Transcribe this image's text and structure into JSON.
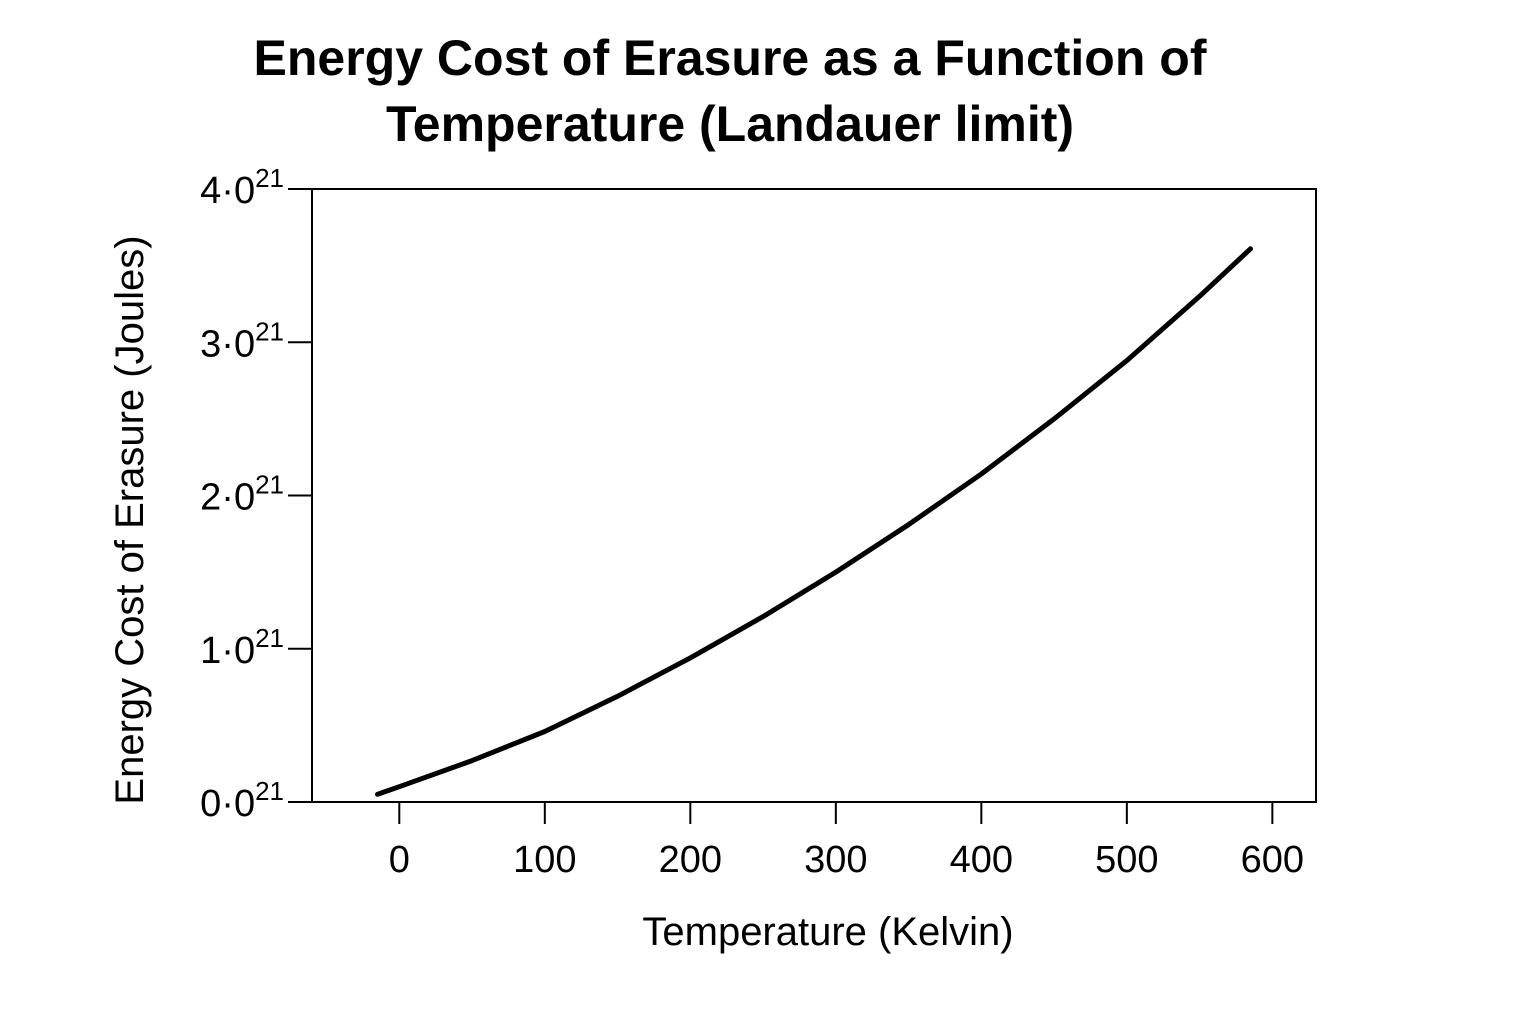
{
  "chart_data": {
    "type": "line",
    "title": [
      "Energy Cost of Erasure as a Function of",
      "Temperature (Landauer limit)"
    ],
    "xlabel": "Temperature (Kelvin)",
    "ylabel": "Energy Cost of Erasure (Joules)",
    "xlim": [
      -60,
      630
    ],
    "ylim": [
      0,
      4
    ],
    "x_ticks": [
      0,
      100,
      200,
      300,
      400,
      500,
      600
    ],
    "x_tick_labels": [
      "0",
      "100",
      "200",
      "300",
      "400",
      "500",
      "600"
    ],
    "y_ticks": [
      0,
      1,
      2,
      3,
      4
    ],
    "y_tick_labels": [
      {
        "base": "0·0",
        "sup": "21"
      },
      {
        "base": "1·0",
        "sup": "21"
      },
      {
        "base": "2·0",
        "sup": "21"
      },
      {
        "base": "3·0",
        "sup": "21"
      },
      {
        "base": "4·0",
        "sup": "21"
      }
    ],
    "grid": false,
    "series": [
      {
        "color": "#000000",
        "x": [
          -15,
          0,
          50,
          100,
          150,
          200,
          250,
          300,
          350,
          400,
          450,
          500,
          550,
          585
        ],
        "y": [
          0.05,
          0.1,
          0.27,
          0.46,
          0.69,
          0.94,
          1.21,
          1.5,
          1.81,
          2.14,
          2.5,
          2.88,
          3.3,
          3.61
        ]
      }
    ]
  }
}
